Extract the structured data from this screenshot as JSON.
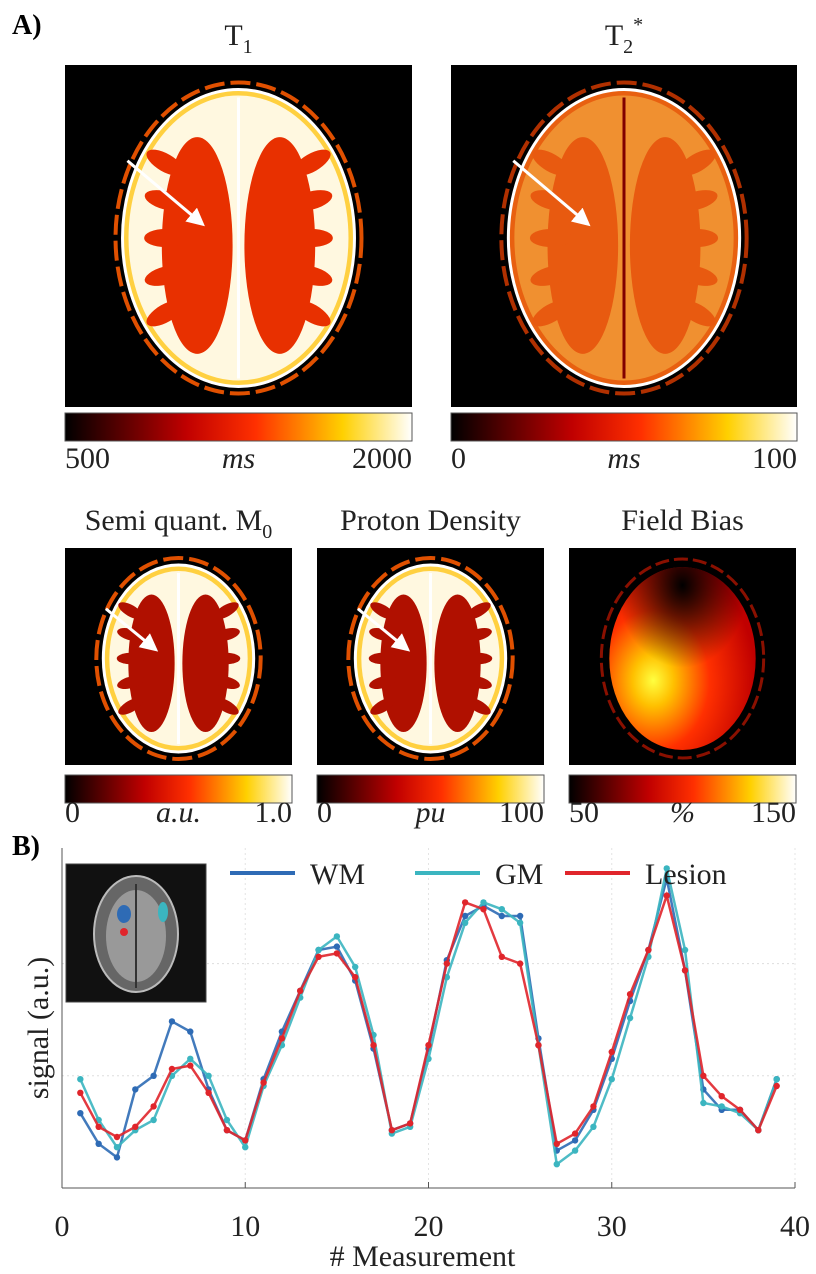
{
  "panel_a": {
    "label": "A)",
    "maps": [
      {
        "title": {
          "base": "T",
          "sub": "1"
        },
        "colorbar": {
          "min": "500",
          "unit": "ms",
          "max": "2000"
        }
      },
      {
        "title": {
          "base": "T",
          "sub": "2",
          "sup": "*"
        },
        "colorbar": {
          "min": "0",
          "unit": "ms",
          "max": "100"
        }
      },
      {
        "title": {
          "base": "Semi quant. M",
          "sub": "0"
        },
        "colorbar": {
          "min": "0",
          "unit": "a.u.",
          "max": "1.0"
        }
      },
      {
        "title": {
          "base": "Proton Density"
        },
        "colorbar": {
          "min": "0",
          "unit": "pu",
          "max": "100"
        }
      },
      {
        "title": {
          "base": "Field Bias"
        },
        "colorbar": {
          "min": "50",
          "unit": "%",
          "max": "150"
        }
      }
    ]
  },
  "panel_b": {
    "label": "B)"
  },
  "chart_data": {
    "type": "line",
    "x": [
      1,
      2,
      3,
      4,
      5,
      6,
      7,
      8,
      9,
      10,
      11,
      12,
      13,
      14,
      15,
      16,
      17,
      18,
      19,
      20,
      21,
      22,
      23,
      24,
      25,
      26,
      27,
      28,
      29,
      30,
      31,
      32,
      33,
      34,
      35,
      36,
      37,
      38,
      39
    ],
    "xlim": [
      0,
      40
    ],
    "xticks": [
      0,
      10,
      20,
      30,
      40
    ],
    "ylim": [
      0,
      1
    ],
    "ygrid": [
      0.33,
      0.66
    ],
    "xlabel": "# Measurement",
    "ylabel": "signal (a.u.)",
    "series": [
      {
        "name": "WM",
        "color": "#2e6bb5",
        "values": [
          0.22,
          0.13,
          0.09,
          0.29,
          0.33,
          0.49,
          0.46,
          0.29,
          0.17,
          0.14,
          0.32,
          0.46,
          0.58,
          0.7,
          0.71,
          0.61,
          0.41,
          0.17,
          0.19,
          0.41,
          0.67,
          0.8,
          0.83,
          0.8,
          0.8,
          0.44,
          0.11,
          0.14,
          0.23,
          0.38,
          0.55,
          0.7,
          0.91,
          0.64,
          0.29,
          0.23,
          0.23,
          0.17,
          0.32
        ]
      },
      {
        "name": "GM",
        "color": "#3bb5c0",
        "values": [
          0.32,
          0.2,
          0.12,
          0.17,
          0.2,
          0.33,
          0.38,
          0.33,
          0.2,
          0.12,
          0.3,
          0.42,
          0.56,
          0.7,
          0.74,
          0.65,
          0.45,
          0.16,
          0.18,
          0.38,
          0.62,
          0.78,
          0.84,
          0.82,
          0.78,
          0.42,
          0.07,
          0.11,
          0.18,
          0.32,
          0.5,
          0.68,
          0.94,
          0.7,
          0.25,
          0.24,
          0.22,
          0.17,
          0.32
        ]
      },
      {
        "name": "Lesion",
        "color": "#e0252b",
        "values": [
          0.28,
          0.18,
          0.15,
          0.18,
          0.24,
          0.35,
          0.36,
          0.28,
          0.17,
          0.14,
          0.31,
          0.44,
          0.58,
          0.68,
          0.69,
          0.62,
          0.42,
          0.17,
          0.19,
          0.42,
          0.66,
          0.84,
          0.82,
          0.68,
          0.66,
          0.42,
          0.13,
          0.16,
          0.24,
          0.4,
          0.57,
          0.7,
          0.86,
          0.64,
          0.33,
          0.27,
          0.23,
          0.17,
          0.3
        ]
      }
    ]
  }
}
